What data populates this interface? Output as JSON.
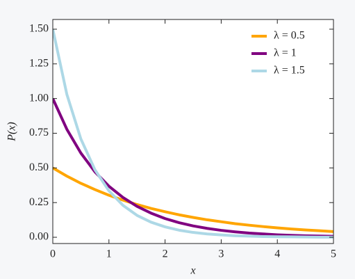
{
  "chart_data": {
    "type": "line",
    "xlabel": "x",
    "ylabel": "P(x)",
    "x": [
      0,
      0.25,
      0.5,
      0.75,
      1,
      1.25,
      1.5,
      1.75,
      2,
      2.25,
      2.5,
      2.75,
      3,
      3.25,
      3.5,
      3.75,
      4,
      4.25,
      4.5,
      4.75,
      5
    ],
    "series": [
      {
        "name": "λ = 0.5",
        "color": "#FFA500",
        "values": [
          0.5,
          0.441,
          0.389,
          0.344,
          0.303,
          0.268,
          0.236,
          0.208,
          0.184,
          0.162,
          0.143,
          0.126,
          0.112,
          0.098,
          0.087,
          0.077,
          0.068,
          0.06,
          0.053,
          0.047,
          0.041
        ]
      },
      {
        "name": "λ = 1",
        "color": "#800080",
        "values": [
          1,
          0.779,
          0.607,
          0.472,
          0.368,
          0.287,
          0.223,
          0.174,
          0.135,
          0.105,
          0.082,
          0.064,
          0.05,
          0.039,
          0.03,
          0.024,
          0.018,
          0.014,
          0.011,
          0.009,
          0.007
        ]
      },
      {
        "name": "λ = 1.5",
        "color": "#ADD8E6",
        "values": [
          1.5,
          1.031,
          0.709,
          0.487,
          0.335,
          0.23,
          0.158,
          0.109,
          0.075,
          0.051,
          0.035,
          0.024,
          0.017,
          0.011,
          0.008,
          0.005,
          0.004,
          0.003,
          0.002,
          0.001,
          0.001
        ]
      }
    ],
    "xlim": [
      0,
      5
    ],
    "ylim": [
      -0.045,
      1.57
    ],
    "xticks": [
      0,
      1,
      2,
      3,
      4,
      5
    ],
    "yticks": [
      {
        "value": 0,
        "label": "0.00"
      },
      0.25,
      {
        "value": 0.5,
        "label": "0.50"
      },
      0.75,
      {
        "value": 1,
        "label": "1.00"
      },
      1.25,
      {
        "value": 1.5,
        "label": "1.50"
      }
    ],
    "grid": false,
    "legend": "upper right"
  }
}
